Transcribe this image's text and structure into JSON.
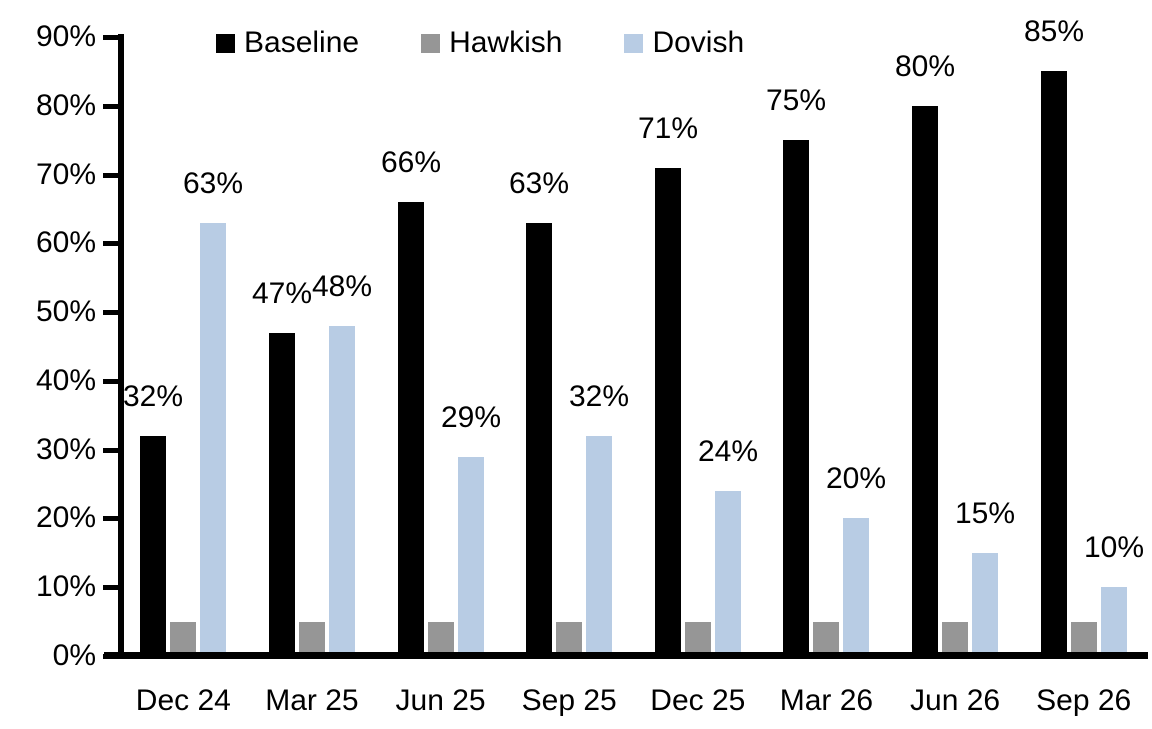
{
  "chart_data": {
    "type": "bar",
    "title": "",
    "xlabel": "",
    "ylabel": "",
    "categories": [
      "Dec 24",
      "Mar 25",
      "Jun 25",
      "Sep 25",
      "Dec 25",
      "Mar 26",
      "Jun 26",
      "Sep 26"
    ],
    "series": [
      {
        "name": "Baseline",
        "color": "#000000",
        "values": [
          32,
          47,
          66,
          63,
          71,
          75,
          80,
          85
        ],
        "data_labels": [
          "32%",
          "47%",
          "66%",
          "63%",
          "71%",
          "75%",
          "80%",
          "85%"
        ]
      },
      {
        "name": "Hawkish",
        "color": "#969696",
        "values": [
          5,
          5,
          5,
          5,
          5,
          5,
          5,
          5
        ],
        "data_labels": [
          "",
          "",
          "",
          "",
          "",
          "",
          "",
          ""
        ]
      },
      {
        "name": "Dovish",
        "color": "#b8cce4",
        "values": [
          63,
          48,
          29,
          32,
          24,
          20,
          15,
          10
        ],
        "data_labels": [
          "63%",
          "48%",
          "29%",
          "32%",
          "24%",
          "20%",
          "15%",
          "10%"
        ]
      }
    ],
    "ylim": [
      0,
      90
    ],
    "ytick_step": 10,
    "yticklabels": [
      "0%",
      "10%",
      "20%",
      "30%",
      "40%",
      "50%",
      "60%",
      "70%",
      "80%",
      "90%"
    ],
    "legend_position": "top",
    "grid": false,
    "axis_color": "#000000",
    "background_color": "#ffffff"
  }
}
